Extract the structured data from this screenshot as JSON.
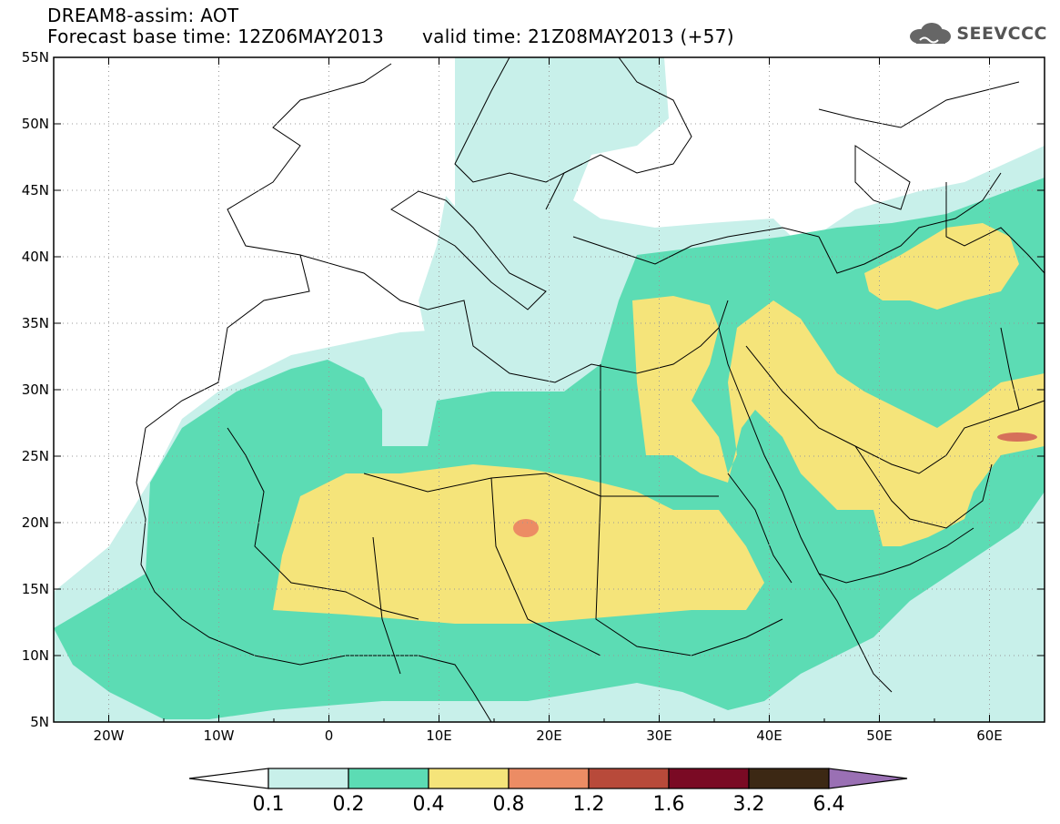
{
  "header": {
    "title": "DREAM8-assim: AOT",
    "base_time": "Forecast base time: 12Z06MAY2013",
    "valid_time": "valid time: 21Z08MAY2013 (+57)"
  },
  "logo": {
    "text": "SEEVCCC",
    "icon": "cloud-logo-icon"
  },
  "map": {
    "lat_labels": [
      "55N",
      "50N",
      "45N",
      "40N",
      "35N",
      "30N",
      "25N",
      "20N",
      "15N",
      "10N",
      "5N"
    ],
    "lon_labels": [
      "20W",
      "10W",
      "0",
      "10E",
      "20E",
      "30E",
      "40E",
      "50E",
      "60E"
    ],
    "lat_range": [
      5,
      55
    ],
    "lon_range": [
      -25,
      65
    ],
    "grid": "dotted"
  },
  "colorbar": {
    "labels": [
      "0.1",
      "0.2",
      "0.4",
      "0.8",
      "1.2",
      "1.6",
      "3.2",
      "6.4"
    ],
    "colors": [
      "#c8f0ea",
      "#5cdcb4",
      "#f5e47a",
      "#ec8c64",
      "#b84a3a",
      "#7a0a24",
      "#3c2814",
      "#9a70b4"
    ]
  },
  "colors": {
    "aot_0_1": "#c8f0ea",
    "aot_0_2": "#5cdcb4",
    "aot_0_4": "#f5e47a",
    "aot_0_8": "#ec8c64"
  }
}
